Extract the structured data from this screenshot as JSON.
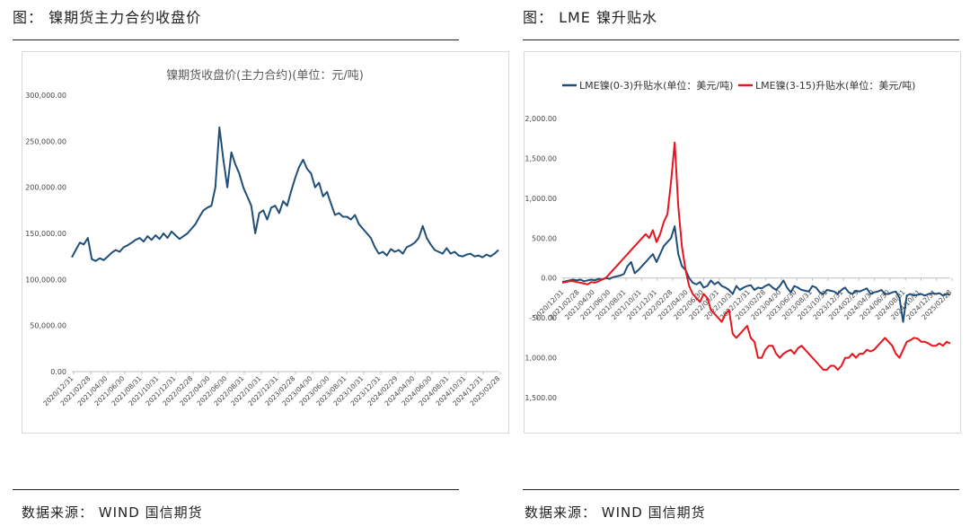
{
  "left_figure": {
    "heading": "图：  镍期货主力合约收盘价",
    "source": "数据来源：  WIND  国信期货"
  },
  "right_figure": {
    "heading": "图：  LME 镍升贴水",
    "source": "数据来源：  WIND  国信期货"
  },
  "chart_data": [
    {
      "type": "line",
      "title": "镍期货收盘价(主力合约)(单位：元/吨)",
      "xlabel": "",
      "ylabel": "",
      "ylim": [
        0,
        300000
      ],
      "y_ticks": [
        "0.00",
        "50,000.00",
        "100,000.00",
        "150,000.00",
        "200,000.00",
        "250,000.00",
        "300,000.00"
      ],
      "x_ticks": [
        "2020/12/31",
        "2021/02/28",
        "2021/04/30",
        "2021/06/30",
        "2021/08/31",
        "2021/10/31",
        "2021/12/31",
        "2022/02/28",
        "2022/04/30",
        "2022/06/30",
        "2022/08/31",
        "2022/10/31",
        "2022/12/31",
        "2023/02/28",
        "2023/04/30",
        "2023/06/30",
        "2023/08/31",
        "2023/10/31",
        "2023/12/31",
        "2024/02/29",
        "2024/04/30",
        "2024/06/30",
        "2024/08/31",
        "2024/10/31",
        "2024/12/31",
        "2025/02/28"
      ],
      "colors": {
        "line": "#1f4e79"
      },
      "series": [
        {
          "name": "镍期货收盘价",
          "values": [
            124000,
            132000,
            140000,
            138000,
            145000,
            122000,
            120000,
            123000,
            121000,
            125000,
            129000,
            132000,
            130000,
            135000,
            137000,
            140000,
            143000,
            145000,
            141000,
            147000,
            143000,
            148000,
            144000,
            150000,
            145000,
            152000,
            148000,
            144000,
            147000,
            150000,
            155000,
            160000,
            168000,
            175000,
            178000,
            180000,
            200000,
            265000,
            230000,
            200000,
            238000,
            225000,
            215000,
            200000,
            190000,
            180000,
            150000,
            172000,
            175000,
            165000,
            178000,
            180000,
            172000,
            185000,
            180000,
            196000,
            210000,
            222000,
            230000,
            220000,
            215000,
            200000,
            205000,
            190000,
            195000,
            182000,
            170000,
            172000,
            168000,
            168000,
            165000,
            170000,
            160000,
            155000,
            150000,
            145000,
            135000,
            128000,
            130000,
            126000,
            133000,
            130000,
            132000,
            128000,
            135000,
            137000,
            140000,
            145000,
            158000,
            145000,
            138000,
            132000,
            130000,
            128000,
            134000,
            128000,
            130000,
            126000,
            125000,
            127000,
            128000,
            125000,
            126000,
            124000,
            127000,
            125000,
            128000,
            132000
          ]
        }
      ]
    },
    {
      "type": "line",
      "title": "",
      "xlabel": "",
      "ylabel": "",
      "ylim": [
        -1500,
        2000
      ],
      "y_ticks": [
        "-1,500.00",
        "-1,000.00",
        "-500.00",
        "0.00",
        "500.00",
        "1,000.00",
        "1,500.00",
        "2,000.00"
      ],
      "x_ticks": [
        "2020/12/31",
        "2021/02/28",
        "2021/04/30",
        "2021/06/30",
        "2021/08/31",
        "2021/10/31",
        "2021/12/31",
        "2022/02/28",
        "2022/04/30",
        "2022/06/30",
        "2022/08/31",
        "2022/10/31",
        "2022/12/31",
        "2023/02/28",
        "2023/04/30",
        "2023/06/30",
        "2023/08/31",
        "2023/10/31",
        "2023/12/31",
        "2024/02/29",
        "2024/04/30",
        "2024/06/30",
        "2024/08/31",
        "2024/10/31",
        "2024/12/31",
        "2025/02/28"
      ],
      "legend_position": "top",
      "colors": {
        "s1": "#1f4e79",
        "s2": "#e8141c"
      },
      "series": [
        {
          "name": "LME镍(0-3)升贴水(单位：美元/吨)",
          "values": [
            -50,
            -40,
            -30,
            -20,
            -30,
            -20,
            -40,
            -30,
            -20,
            -30,
            -10,
            -20,
            0,
            -10,
            10,
            20,
            30,
            50,
            150,
            200,
            60,
            100,
            150,
            200,
            250,
            300,
            200,
            300,
            400,
            450,
            500,
            650,
            300,
            150,
            100,
            0,
            -60,
            -80,
            -50,
            -120,
            -100,
            -30,
            -80,
            -50,
            -100,
            -120,
            -150,
            -200,
            -100,
            -150,
            -120,
            -100,
            -90,
            -150,
            -120,
            -130,
            -100,
            -80,
            -120,
            -150,
            -100,
            -30,
            -120,
            -180,
            -100,
            -120,
            -150,
            -160,
            -170,
            -100,
            -120,
            -180,
            -200,
            -150,
            -160,
            -170,
            -200,
            -150,
            -120,
            -180,
            -200,
            -160,
            -170,
            -150,
            -130,
            -200,
            -180,
            -170,
            -150,
            -200,
            -200,
            -180,
            -170,
            -250,
            -550,
            -220,
            -200,
            -220,
            -210,
            -200,
            -220,
            -200,
            -190,
            -200,
            -190,
            -220,
            -200,
            -210
          ]
        },
        {
          "name": "LME镍(3-15)升贴水(单位：美元/吨)",
          "values": [
            -60,
            -50,
            -40,
            -40,
            -50,
            -60,
            -70,
            -80,
            -50,
            -60,
            -40,
            -20,
            0,
            50,
            100,
            150,
            200,
            250,
            300,
            350,
            400,
            450,
            500,
            550,
            500,
            600,
            450,
            550,
            700,
            800,
            1200,
            1700,
            900,
            400,
            100,
            -100,
            -200,
            -250,
            -300,
            -200,
            -250,
            -400,
            -450,
            -500,
            -550,
            -450,
            -400,
            -700,
            -750,
            -700,
            -650,
            -600,
            -750,
            -800,
            -1000,
            -1000,
            -900,
            -850,
            -850,
            -950,
            -1000,
            -950,
            -920,
            -900,
            -950,
            -880,
            -850,
            -900,
            -950,
            -1000,
            -1050,
            -1100,
            -1150,
            -1150,
            -1100,
            -1100,
            -1150,
            -1100,
            -1000,
            -1000,
            -950,
            -1000,
            -950,
            -950,
            -900,
            -920,
            -900,
            -850,
            -800,
            -750,
            -800,
            -850,
            -950,
            -1000,
            -900,
            -800,
            -780,
            -750,
            -760,
            -800,
            -800,
            -820,
            -850,
            -850,
            -820,
            -850,
            -800,
            -820
          ]
        }
      ]
    }
  ]
}
